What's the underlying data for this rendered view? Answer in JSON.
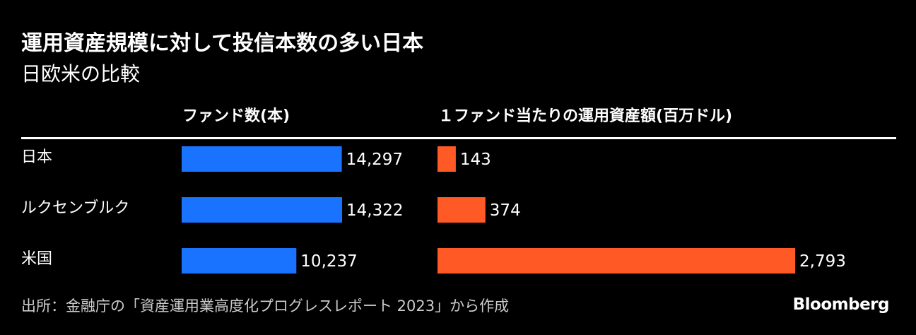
{
  "title": "運用資産規模に対して投信本数の多い日本",
  "subtitle": "日欧米の比較",
  "source": "出所：金融庁の「資産運用業高度化プログレスレポート 2023」から作成",
  "brand": "Bloomberg",
  "colors": {
    "background": "#000000",
    "fund_count_bar": "#1a73ff",
    "asset_bar": "#ff5a26",
    "text": "#ffffff"
  },
  "chart_data": [
    {
      "type": "bar",
      "orientation": "horizontal",
      "title": "ファンド数(本)",
      "categories": [
        "日本",
        "ルクセンブルク",
        "米国"
      ],
      "values": [
        14297,
        14322,
        10237
      ],
      "value_labels": [
        "14,297",
        "14,322",
        "10,237"
      ],
      "color": "#1a73ff"
    },
    {
      "type": "bar",
      "orientation": "horizontal",
      "title": "１ファンド当たりの運用資産額(百万ドル)",
      "categories": [
        "日本",
        "ルクセンブルク",
        "米国"
      ],
      "values": [
        143,
        374,
        2793
      ],
      "value_labels": [
        "143",
        "374",
        "2,793"
      ],
      "color": "#ff5a26"
    }
  ]
}
